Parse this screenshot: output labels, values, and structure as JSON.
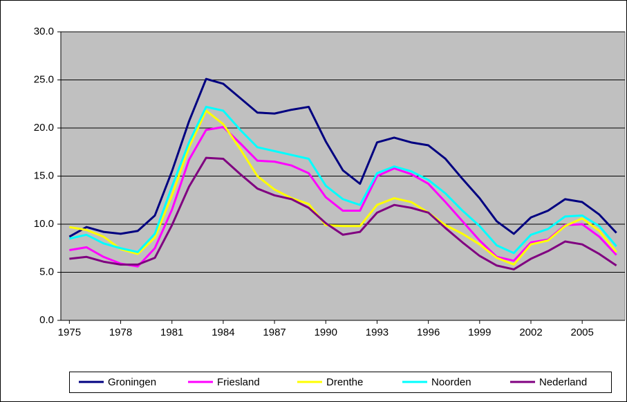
{
  "chart_data": {
    "type": "line",
    "x": [
      1975,
      1976,
      1977,
      1978,
      1979,
      1980,
      1981,
      1982,
      1983,
      1984,
      1985,
      1986,
      1987,
      1988,
      1989,
      1990,
      1991,
      1992,
      1993,
      1994,
      1995,
      1996,
      1997,
      1998,
      1999,
      2000,
      2001,
      2002,
      2003,
      2004,
      2005,
      2006,
      2007
    ],
    "xlim": [
      1974.5,
      2007.5
    ],
    "xticks": [
      1975,
      1978,
      1981,
      1984,
      1987,
      1990,
      1993,
      1996,
      1999,
      2002,
      2005
    ],
    "ylim": [
      0,
      30
    ],
    "yticks": [
      {
        "value": 0,
        "label": "0.0"
      },
      {
        "value": 5,
        "label": "5.0"
      },
      {
        "value": 10,
        "label": "10.0"
      },
      {
        "value": 15,
        "label": "15.0"
      },
      {
        "value": 20,
        "label": "20.0"
      },
      {
        "value": 25,
        "label": "25.0"
      },
      {
        "value": 30,
        "label": "30.0"
      }
    ],
    "grid": true,
    "legend": "bottom",
    "series": [
      {
        "name": "Groningen",
        "color": "#000080",
        "values": [
          8.7,
          9.7,
          9.2,
          9.0,
          9.3,
          10.9,
          15.5,
          20.7,
          25.1,
          24.6,
          23.1,
          21.6,
          21.5,
          21.9,
          22.2,
          18.6,
          15.6,
          14.2,
          18.5,
          19.0,
          18.5,
          18.2,
          16.8,
          14.7,
          12.7,
          10.3,
          9.0,
          10.7,
          11.4,
          12.6,
          12.3,
          11.0,
          9.1
        ]
      },
      {
        "name": "Friesland",
        "color": "#ff00ff",
        "values": [
          7.3,
          7.6,
          6.6,
          5.9,
          5.6,
          7.5,
          11.5,
          16.7,
          19.8,
          20.1,
          18.4,
          16.6,
          16.5,
          16.1,
          15.3,
          12.8,
          11.4,
          11.4,
          15.0,
          15.8,
          15.2,
          14.2,
          12.3,
          10.3,
          8.3,
          6.6,
          6.2,
          8.1,
          8.4,
          9.9,
          10.0,
          8.7,
          6.8
        ]
      },
      {
        "name": "Drenthe",
        "color": "#ffff00",
        "values": [
          9.7,
          9.4,
          8.7,
          7.4,
          6.9,
          8.6,
          13.0,
          18.0,
          21.8,
          20.4,
          17.8,
          15.0,
          13.6,
          12.7,
          12.1,
          9.9,
          9.8,
          9.8,
          12.0,
          12.7,
          12.3,
          11.2,
          9.9,
          9.0,
          7.9,
          6.5,
          5.8,
          7.9,
          8.3,
          9.8,
          10.6,
          9.3,
          7.1
        ]
      },
      {
        "name": "Noorden",
        "color": "#00ffff",
        "values": [
          8.5,
          8.9,
          8.0,
          7.5,
          7.1,
          9.0,
          13.9,
          18.5,
          22.2,
          21.8,
          19.8,
          18.0,
          17.6,
          17.2,
          16.8,
          14.0,
          12.6,
          12.0,
          15.3,
          16.0,
          15.5,
          14.6,
          13.2,
          11.4,
          9.8,
          7.8,
          7.0,
          8.9,
          9.5,
          10.8,
          10.9,
          9.8,
          7.7
        ]
      },
      {
        "name": "Nederland",
        "color": "#800080",
        "values": [
          6.4,
          6.6,
          6.1,
          5.8,
          5.8,
          6.5,
          9.9,
          13.9,
          16.9,
          16.8,
          15.2,
          13.7,
          13.0,
          12.6,
          11.7,
          10.1,
          8.9,
          9.2,
          11.2,
          12.0,
          11.7,
          11.2,
          9.6,
          8.1,
          6.7,
          5.7,
          5.3,
          6.4,
          7.2,
          8.2,
          7.9,
          6.9,
          5.7
        ]
      }
    ]
  }
}
